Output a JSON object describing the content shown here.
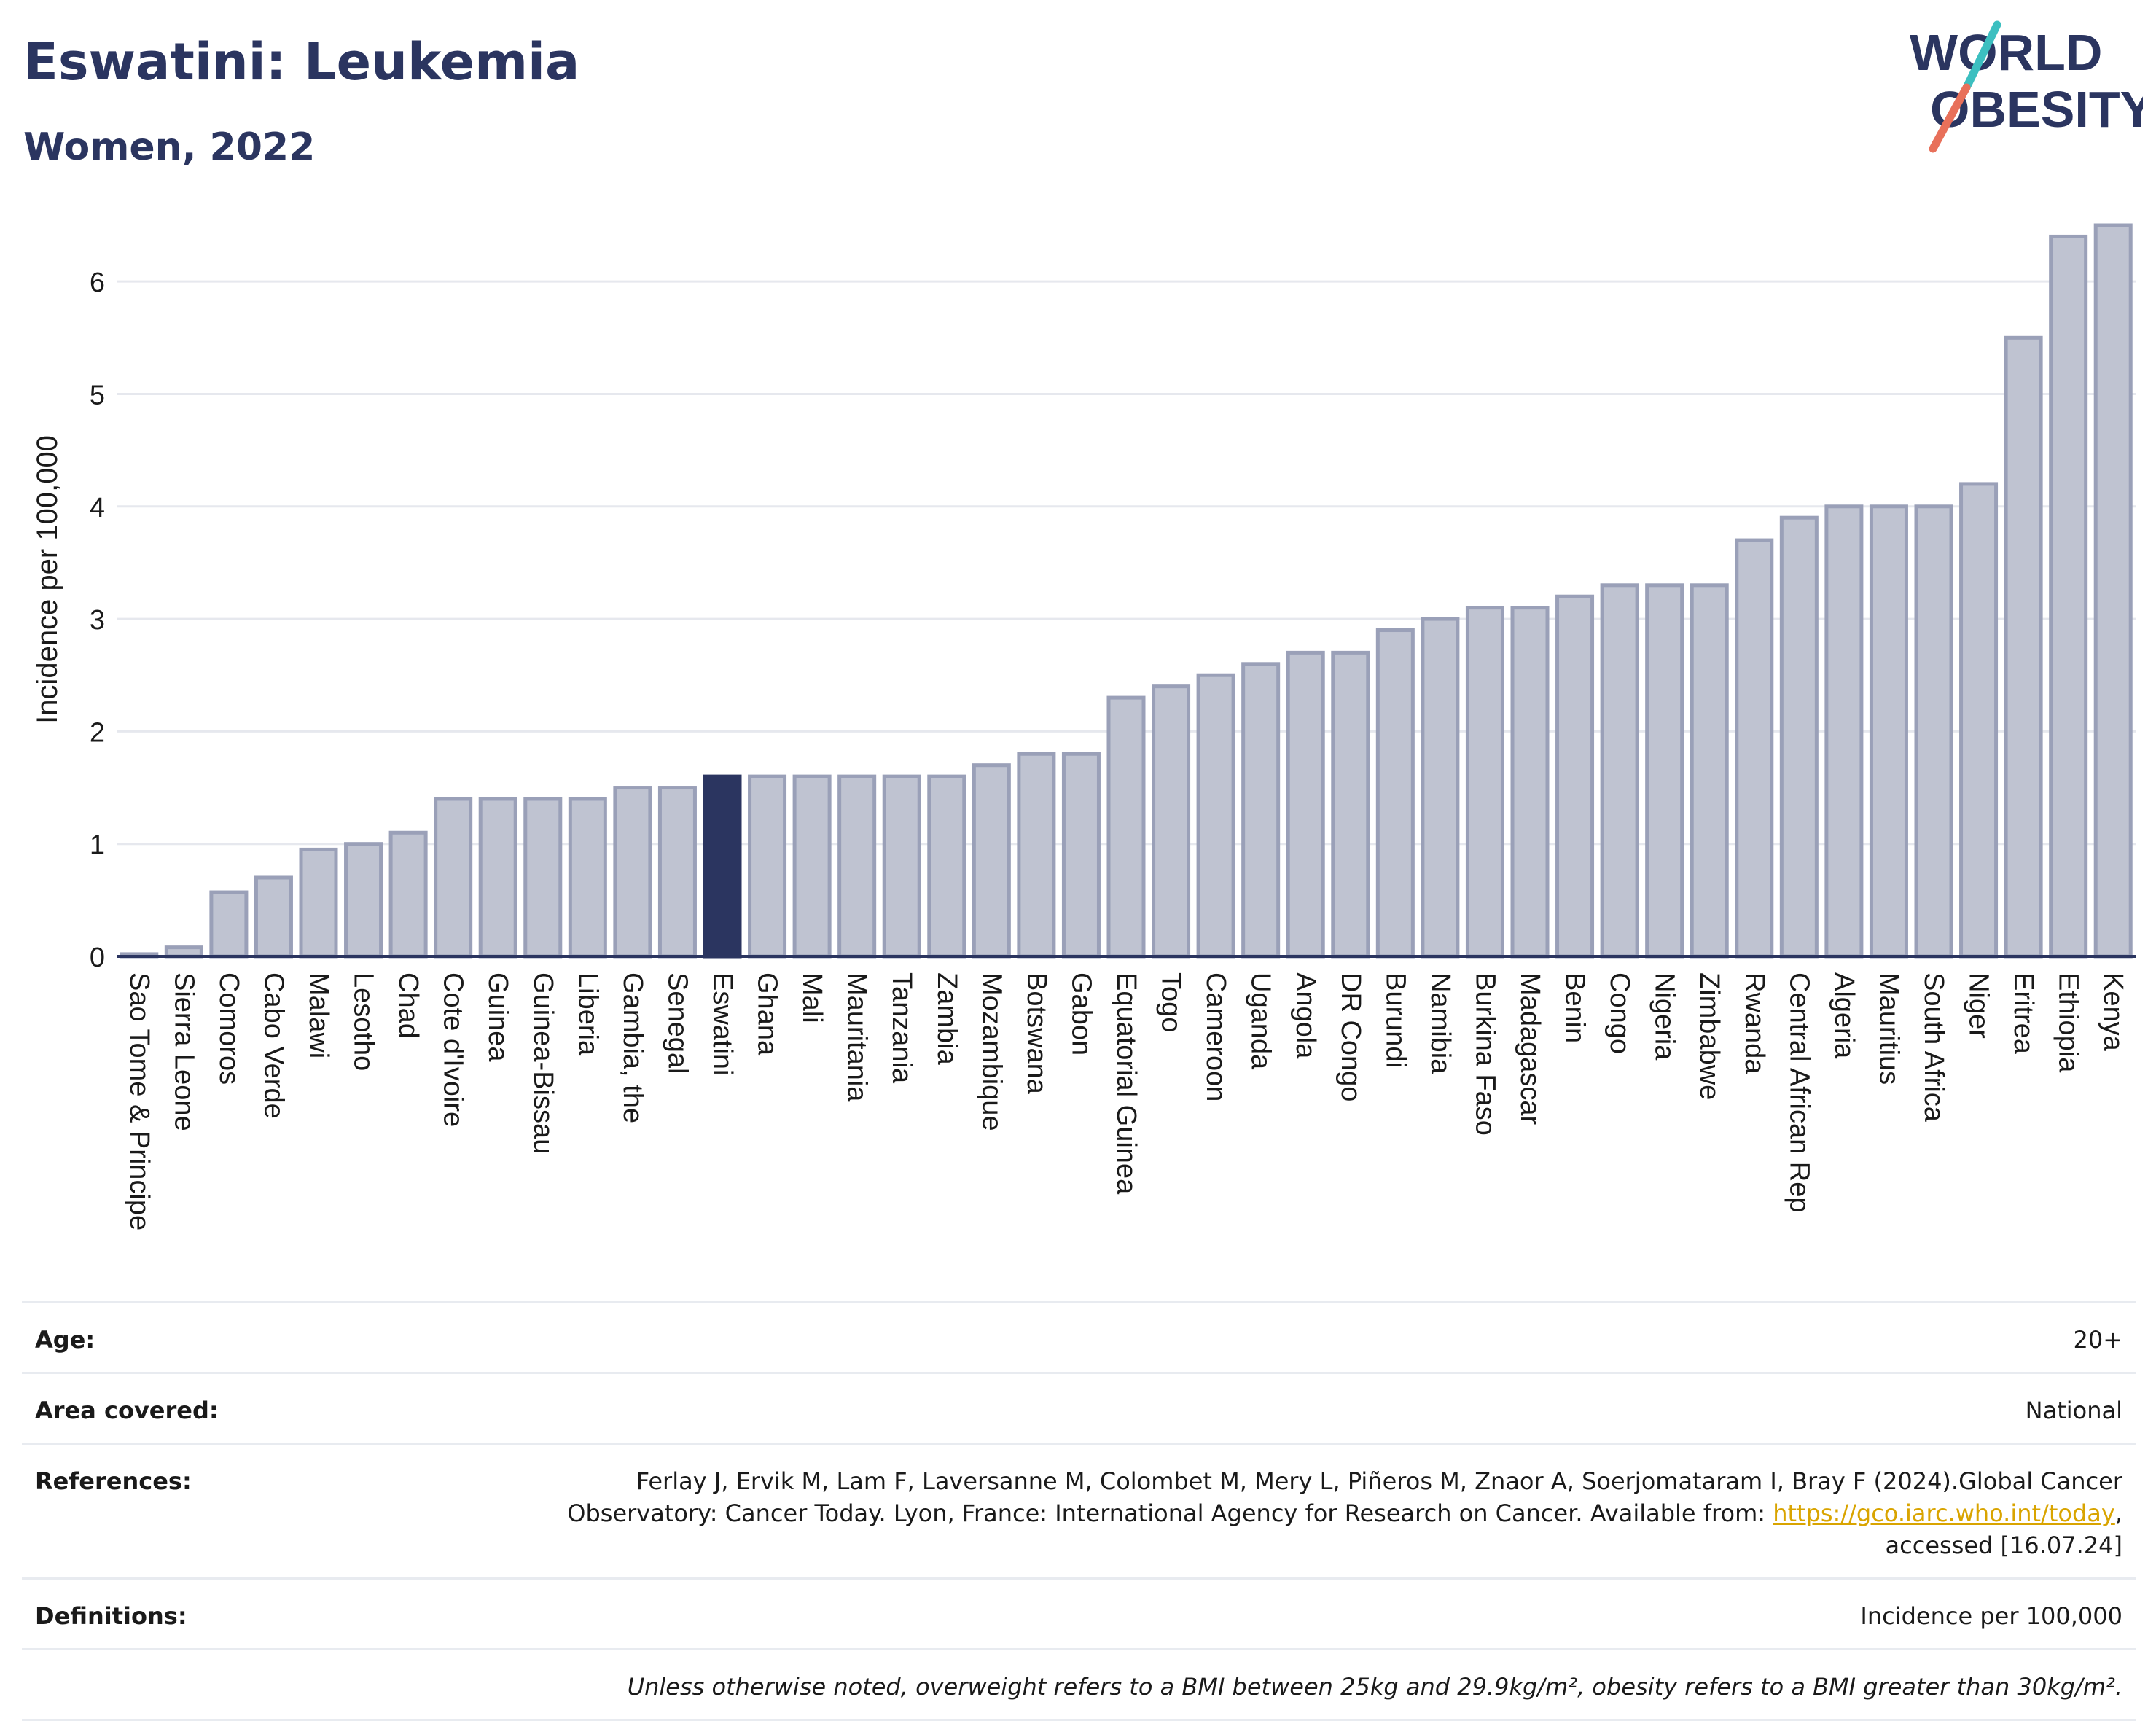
{
  "header": {
    "title": "Eswatini: Leukemia",
    "subtitle": "Women, 2022"
  },
  "logo": {
    "line1": "WORLD",
    "line2": "OBESITY",
    "colors": {
      "text": "#2b3560",
      "slash_top": "#3cbfc0",
      "slash_bottom": "#e8705a"
    }
  },
  "chart_data": {
    "type": "bar",
    "title": "Eswatini: Leukemia",
    "subtitle": "Women, 2022",
    "xlabel": "",
    "ylabel": "Incidence per 100,000",
    "ylim": [
      0,
      6.5
    ],
    "yticks": [
      0,
      1,
      2,
      3,
      4,
      5,
      6
    ],
    "grid": true,
    "highlight": "Eswatini",
    "colors": {
      "bar": "#bfc3d1",
      "bar_edge": "#9aa0b8",
      "highlight": "#2b3560",
      "axis": "#2b3560",
      "grid": "#e6e8ee"
    },
    "categories": [
      "Sao Tome & Principe",
      "Sierra Leone",
      "Comoros",
      "Cabo Verde",
      "Malawi",
      "Lesotho",
      "Chad",
      "Cote d'Ivoire",
      "Guinea",
      "Guinea-Bissau",
      "Liberia",
      "Gambia, the",
      "Senegal",
      "Eswatini",
      "Ghana",
      "Mali",
      "Mauritania",
      "Tanzania",
      "Zambia",
      "Mozambique",
      "Botswana",
      "Gabon",
      "Equatorial Guinea",
      "Togo",
      "Cameroon",
      "Uganda",
      "Angola",
      "DR Congo",
      "Burundi",
      "Namibia",
      "Burkina Faso",
      "Madagascar",
      "Benin",
      "Congo",
      "Nigeria",
      "Zimbabwe",
      "Rwanda",
      "Central African Rep",
      "Algeria",
      "Mauritius",
      "South Africa",
      "Niger",
      "Eritrea",
      "Ethiopia",
      "Kenya"
    ],
    "values": [
      0.02,
      0.08,
      0.57,
      0.7,
      0.95,
      1.0,
      1.1,
      1.4,
      1.4,
      1.4,
      1.4,
      1.5,
      1.5,
      1.6,
      1.6,
      1.6,
      1.6,
      1.6,
      1.6,
      1.7,
      1.8,
      1.8,
      2.3,
      2.4,
      2.5,
      2.6,
      2.7,
      2.7,
      2.9,
      3.0,
      3.1,
      3.1,
      3.2,
      3.3,
      3.3,
      3.3,
      3.7,
      3.9,
      4.0,
      4.0,
      4.0,
      4.2,
      5.5,
      6.4,
      6.5
    ]
  },
  "meta": {
    "age_label": "Age:",
    "age_value": "20+",
    "area_label": "Area covered:",
    "area_value": "National",
    "references_label": "References:",
    "references_text_1": "Ferlay J, Ervik M, Lam F, Laversanne M, Colombet M, Mery L, Piñeros M, Znaor A, Soerjomataram I, Bray F (2024).Global Cancer",
    "references_text_2": "Observatory: Cancer Today. Lyon, France: International Agency for Research on Cancer. Available from: ",
    "references_link": "https://gco.iarc.who.int/today",
    "references_text_3": ",",
    "references_text_4": "accessed [16.07.24]",
    "definitions_label": "Definitions:",
    "definitions_value": "Incidence per 100,000",
    "note": "Unless otherwise noted, overweight refers to a BMI between 25kg and 29.9kg/m², obesity refers to a BMI greater than 30kg/m²."
  }
}
